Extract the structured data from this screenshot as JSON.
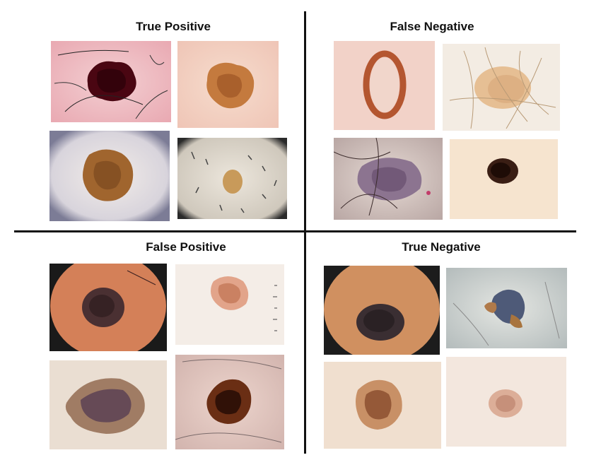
{
  "quadrants": {
    "top_left": {
      "title": "True Positive"
    },
    "top_right": {
      "title": "False Negative"
    },
    "bottom_left": {
      "title": "False Positive"
    },
    "bottom_right": {
      "title": "True Negative"
    }
  },
  "colors": {
    "divider": "#111111",
    "skin_pink": "#f2c8cc",
    "skin_beige": "#f1dcc6",
    "skin_orange": "#c8643a",
    "lesion_dark": "#4a0a14",
    "lesion_brown": "#8b5a2b",
    "lesion_tan": "#c99a5c"
  }
}
